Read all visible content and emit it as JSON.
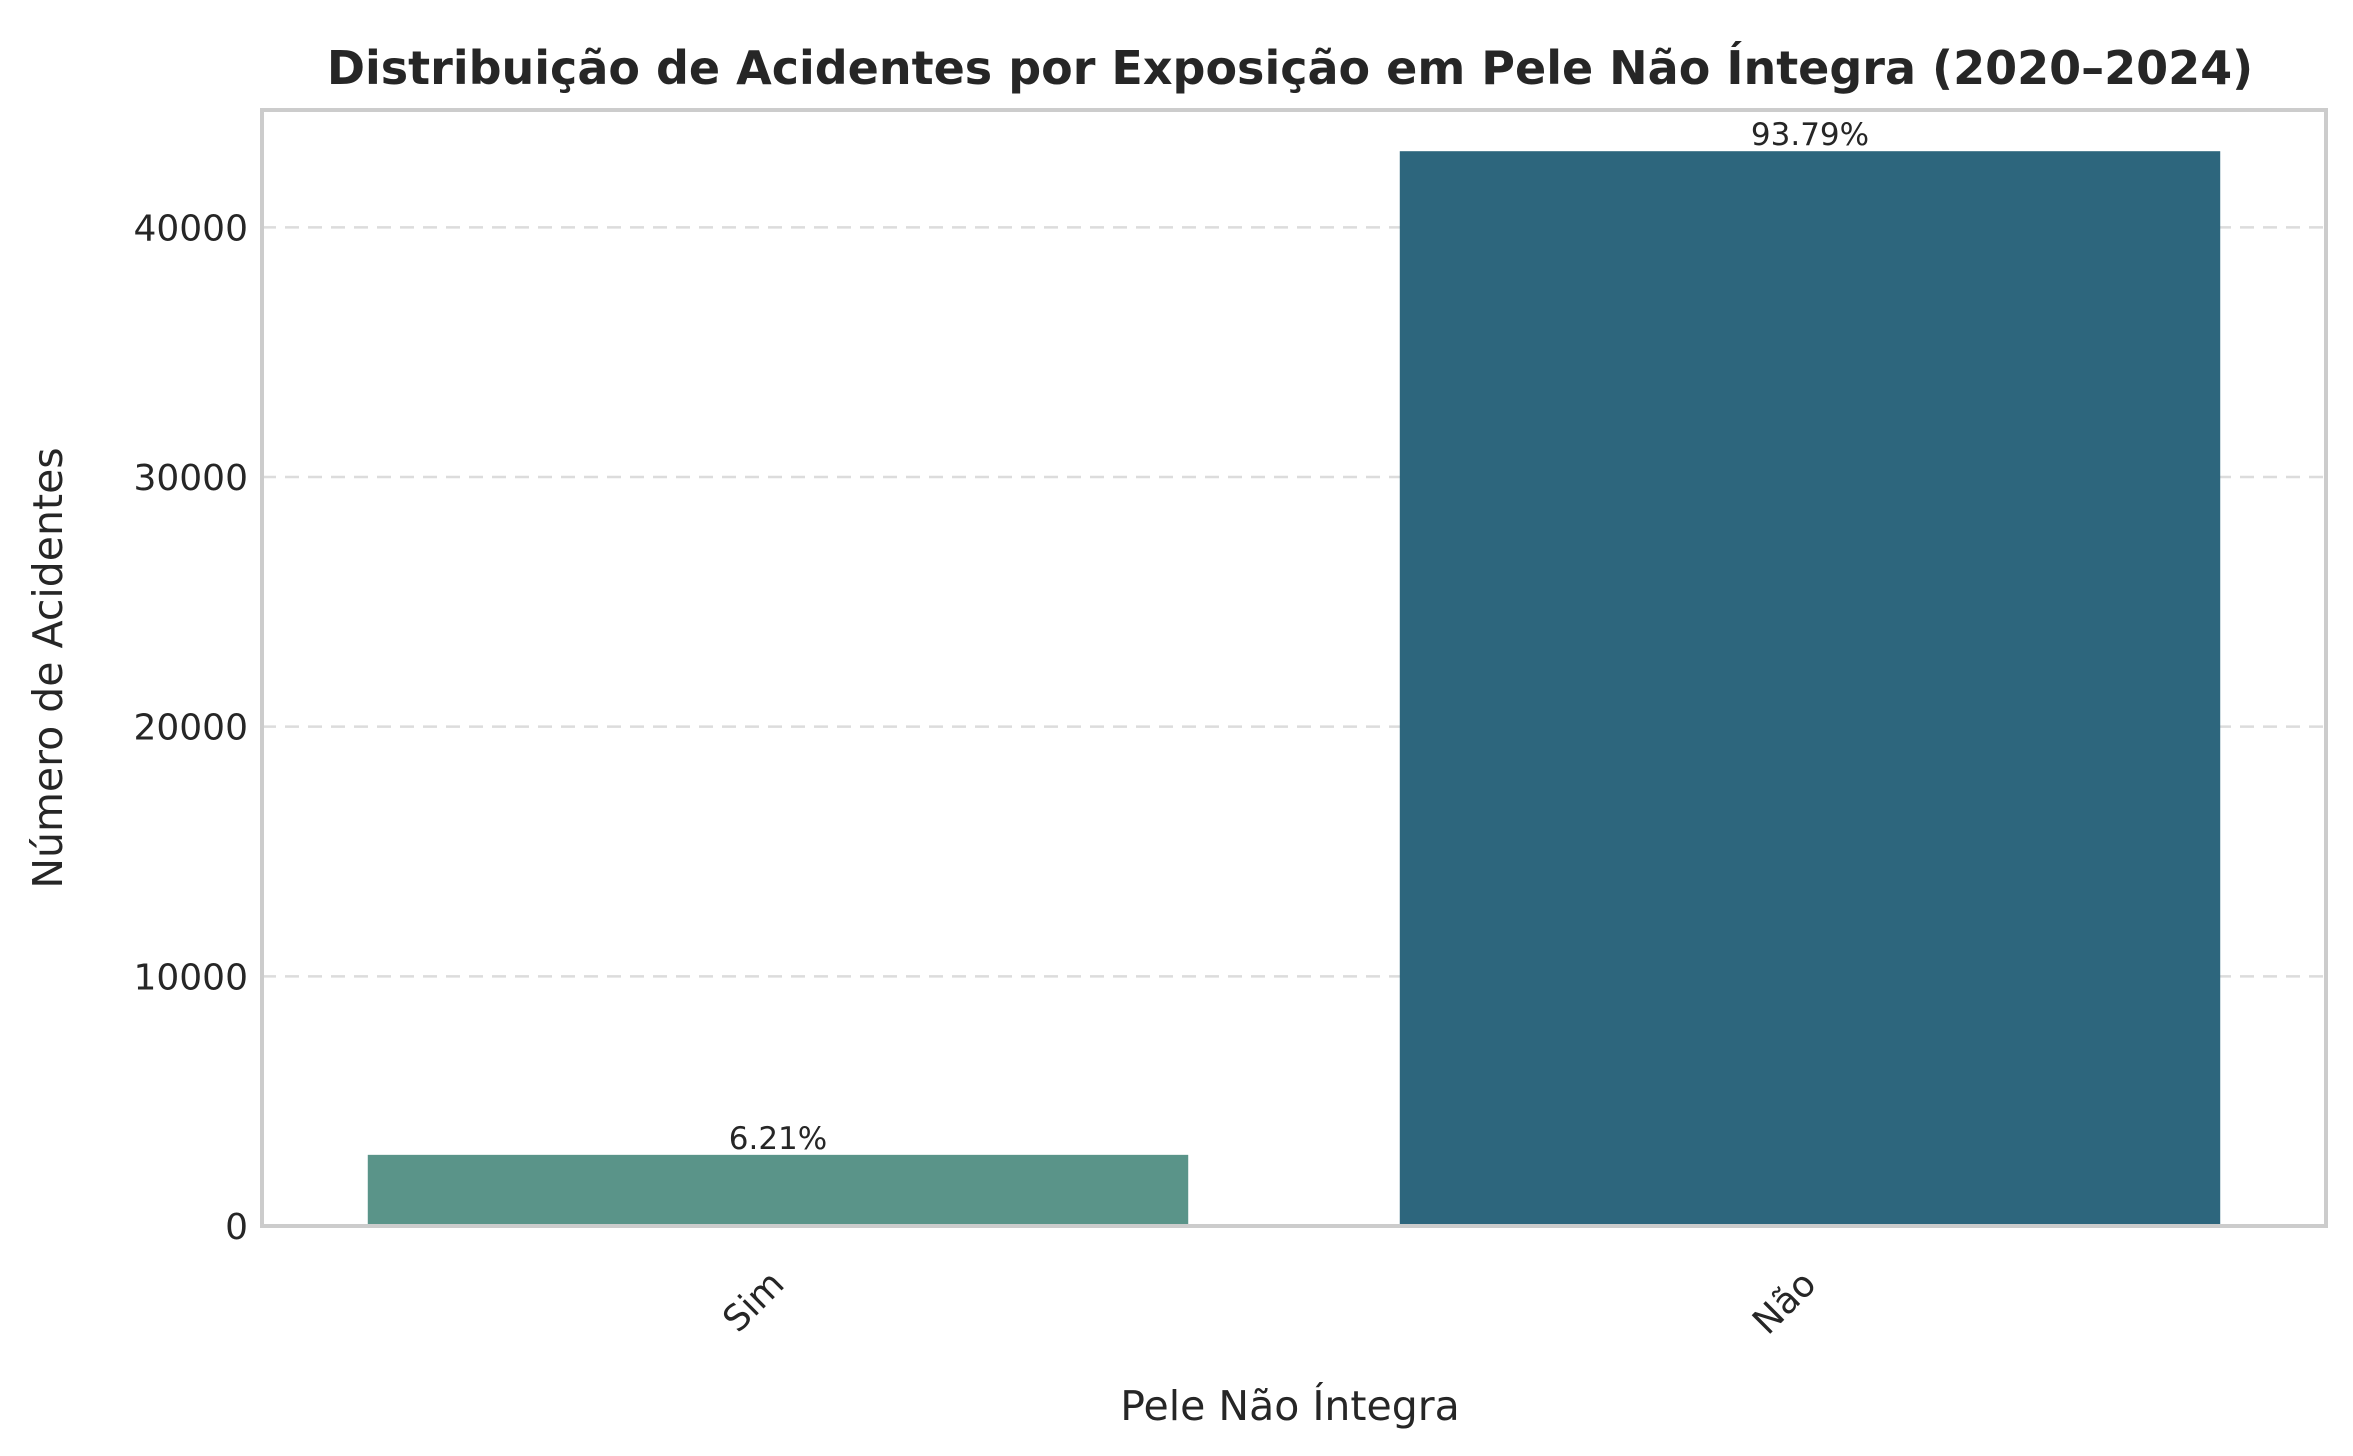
{
  "chart_data": {
    "type": "bar",
    "title": "Distribuição de Acidentes por Exposição em Pele Não Íntegra (2020–2024)",
    "xlabel": "Pele Não Íntegra",
    "ylabel": "Número de Acidentes",
    "categories": [
      "Sim",
      "Não"
    ],
    "values": [
      2850,
      43050
    ],
    "data_labels": [
      "6.21%",
      "93.79%"
    ],
    "colors": [
      "#5a9489",
      "#2d667d"
    ],
    "ylim": [
      0,
      44700
    ],
    "yticks": [
      0,
      10000,
      20000,
      30000,
      40000
    ],
    "ytick_labels": [
      "0",
      "10000",
      "20000",
      "30000",
      "40000"
    ],
    "grid": "horizontal dashed",
    "legend": "none"
  }
}
